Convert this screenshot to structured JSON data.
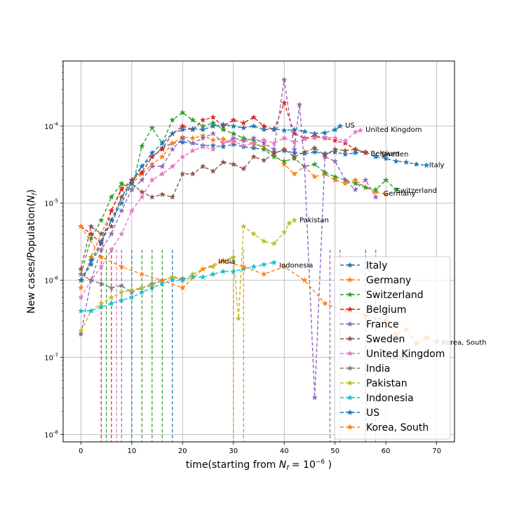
{
  "chart_data": {
    "type": "line",
    "title": "",
    "xlabel": "time(starting from N_f = 10^-6 )",
    "ylabel": "New cases/Population(N_f)",
    "xlim": [
      -3.5,
      73.5
    ],
    "ylim": [
      8e-09,
      0.0007
    ],
    "yscale": "log",
    "xticks": [
      "0",
      "10",
      "20",
      "30",
      "40",
      "50",
      "60",
      "70"
    ],
    "yticks": [
      "10^-8",
      "10^-7",
      "10^-6",
      "10^-5",
      "10^-4"
    ],
    "grid": true,
    "legend_position": "lower-right",
    "series": [
      {
        "name": "Italy",
        "color": "#1f77b4",
        "marker": "star",
        "x": [
          0,
          2,
          4,
          6,
          8,
          10,
          12,
          14,
          16,
          18,
          20,
          22,
          24,
          26,
          28,
          30,
          32,
          34,
          36,
          38,
          40,
          42,
          44,
          46,
          48,
          50,
          52,
          54,
          56,
          58,
          60,
          62,
          64,
          66,
          68
        ],
        "y": [
          1e-06,
          1.6e-06,
          3e-06,
          6e-06,
          1.2e-05,
          2e-05,
          3e-05,
          4e-05,
          5.2e-05,
          6e-05,
          6.2e-05,
          6e-05,
          5.6e-05,
          5.6e-05,
          5.4e-05,
          5.8e-05,
          5.4e-05,
          5.2e-05,
          5e-05,
          4.6e-05,
          4.8e-05,
          4.5e-05,
          4.4e-05,
          4.6e-05,
          4.4e-05,
          4.6e-05,
          4.3e-05,
          4.5e-05,
          4.6e-05,
          4e-05,
          3.8e-05,
          3.5e-05,
          3.4e-05,
          3.2e-05,
          3.1e-05
        ]
      },
      {
        "name": "Germany",
        "color": "#ff7f0e",
        "marker": "star",
        "x": [
          0,
          2,
          4,
          6,
          8,
          10,
          12,
          14,
          16,
          18,
          20,
          22,
          24,
          26,
          28,
          30,
          32,
          34,
          36,
          38,
          40,
          42,
          44,
          46,
          48,
          50,
          52,
          54,
          56,
          58,
          60
        ],
        "y": [
          8e-07,
          2e-06,
          4e-06,
          8e-06,
          1.6e-05,
          1.8e-05,
          2.4e-05,
          3.2e-05,
          4e-05,
          6e-05,
          7.2e-05,
          7e-05,
          7.5e-05,
          6.6e-05,
          6.8e-05,
          6.2e-05,
          6.6e-05,
          5.8e-05,
          5.4e-05,
          4.4e-05,
          3.2e-05,
          2.4e-05,
          3e-05,
          2.2e-05,
          2.4e-05,
          2e-05,
          1.8e-05,
          2e-05,
          1.6e-05,
          1.4e-05,
          1.3e-05
        ]
      },
      {
        "name": "Switzerland",
        "color": "#2ca02c",
        "marker": "star",
        "x": [
          0,
          2,
          4,
          6,
          8,
          10,
          12,
          14,
          16,
          18,
          20,
          22,
          24,
          26,
          28,
          30,
          32,
          34,
          36,
          38,
          40,
          42,
          44,
          46,
          48,
          50,
          52,
          54,
          56,
          58,
          60,
          62
        ],
        "y": [
          1.2e-06,
          3.5e-06,
          6e-06,
          1.2e-05,
          1.8e-05,
          1.5e-05,
          5.5e-05,
          9.5e-05,
          6e-05,
          0.00012,
          0.00015,
          0.00012,
          0.0001,
          0.00011,
          9e-05,
          8e-05,
          7e-05,
          6.5e-05,
          5e-05,
          4e-05,
          3.5e-05,
          3.8e-05,
          3e-05,
          3.2e-05,
          2.5e-05,
          2.2e-05,
          2e-05,
          1.8e-05,
          1.6e-05,
          1.5e-05,
          2e-05,
          1.5e-05
        ]
      },
      {
        "name": "Belgium",
        "color": "#d62728",
        "marker": "star",
        "x": [
          0,
          2,
          4,
          6,
          8,
          10,
          12,
          14,
          16,
          18,
          20,
          22,
          24,
          26,
          28,
          30,
          32,
          34,
          36,
          38,
          40,
          42,
          44,
          46,
          48,
          50,
          52,
          54,
          56
        ],
        "y": [
          5e-06,
          4e-06,
          3e-06,
          8e-06,
          1.5e-05,
          2e-05,
          2.5e-05,
          4e-05,
          5e-05,
          8e-05,
          0.0001,
          9e-05,
          0.00012,
          0.00013,
          0.0001,
          0.00012,
          0.00011,
          0.00013,
          0.0001,
          9e-05,
          0.0002,
          8e-05,
          7e-05,
          7.5e-05,
          7e-05,
          6.5e-05,
          6e-05,
          5e-05,
          4.5e-05
        ]
      },
      {
        "name": "France",
        "color": "#9467bd",
        "marker": "star",
        "x": [
          0,
          2,
          4,
          6,
          8,
          10,
          12,
          14,
          16,
          18,
          20,
          22,
          24,
          26,
          28,
          30,
          32,
          34,
          36,
          38,
          40,
          42,
          43,
          44,
          46,
          48,
          50,
          52,
          54,
          56,
          58
        ],
        "y": [
          2e-07,
          1e-06,
          2.5e-06,
          4e-06,
          8e-06,
          1.5e-05,
          2e-05,
          3e-05,
          3e-05,
          5e-05,
          7e-05,
          6e-05,
          7e-05,
          8e-05,
          6e-05,
          7e-05,
          6.5e-05,
          7e-05,
          6e-05,
          5e-05,
          0.0004,
          5e-05,
          0.00019,
          3e-05,
          3e-08,
          4e-05,
          3.5e-05,
          2e-05,
          1.5e-05,
          2e-05,
          1.2e-05
        ]
      },
      {
        "name": "Sweden",
        "color": "#8c564b",
        "marker": "star",
        "x": [
          0,
          2,
          4,
          6,
          8,
          10,
          12,
          14,
          16,
          18,
          20,
          22,
          24,
          26,
          28,
          30,
          32,
          34,
          36,
          38,
          40,
          42,
          44,
          46,
          48,
          50,
          52,
          54,
          56
        ],
        "y": [
          1.4e-06,
          5e-06,
          4e-06,
          5e-06,
          1.2e-05,
          1.8e-05,
          1.4e-05,
          1.2e-05,
          1.3e-05,
          1.2e-05,
          2.4e-05,
          2.4e-05,
          3e-05,
          2.6e-05,
          3.4e-05,
          3.2e-05,
          2.8e-05,
          4e-05,
          3.6e-05,
          4.4e-05,
          5e-05,
          4e-05,
          4.6e-05,
          5.2e-05,
          4.2e-05,
          5e-05,
          4.8e-05,
          5e-05,
          4.6e-05
        ]
      },
      {
        "name": "United Kingdom",
        "color": "#e377c2",
        "marker": "star",
        "x": [
          0,
          2,
          4,
          6,
          8,
          10,
          12,
          14,
          16,
          18,
          20,
          22,
          24,
          26,
          28,
          30,
          32,
          34,
          36,
          38,
          40,
          42,
          44,
          46,
          48,
          50,
          52,
          54,
          55
        ],
        "y": [
          6e-07,
          1e-06,
          1.5e-06,
          2.5e-06,
          4e-06,
          8e-06,
          1.2e-05,
          2e-05,
          2.4e-05,
          3e-05,
          4e-05,
          4.8e-05,
          5.4e-05,
          5e-05,
          6e-05,
          6.4e-05,
          5.6e-05,
          6e-05,
          6.6e-05,
          6e-05,
          7e-05,
          6.2e-05,
          6.8e-05,
          7e-05,
          7.2e-05,
          7e-05,
          6.4e-05,
          8.4e-05,
          8.8e-05
        ]
      },
      {
        "name": "India",
        "color": "#7f7f7f",
        "marker": "star",
        "x": [
          0,
          2,
          4,
          6,
          8,
          10,
          12,
          14,
          16,
          18,
          20
        ],
        "y": [
          1.2e-06,
          1e-06,
          9e-07,
          8e-07,
          8.5e-07,
          7e-07,
          8e-07,
          9e-07,
          1e-06,
          1.1e-06,
          1.05e-06
        ]
      },
      {
        "name": "Pakistan",
        "color": "#bcbd22",
        "marker": "star",
        "x": [
          0,
          2,
          4,
          6,
          8,
          10,
          12,
          14,
          16,
          18,
          20,
          22,
          24,
          26,
          28,
          30,
          31,
          32,
          34,
          36,
          38,
          40,
          41,
          42
        ],
        "y": [
          2.2e-07,
          4e-07,
          5e-07,
          6e-07,
          7e-07,
          7.5e-07,
          8e-07,
          8.5e-07,
          1e-06,
          1.1e-06,
          1e-06,
          1.2e-06,
          1.4e-06,
          1.5e-06,
          1.8e-06,
          2e-06,
          3.2e-07,
          5e-06,
          4e-06,
          3.2e-06,
          3e-06,
          4.2e-06,
          5.5e-06,
          6e-06
        ]
      },
      {
        "name": "Indonesia",
        "color": "#17becf",
        "marker": "star",
        "x": [
          0,
          2,
          4,
          6,
          8,
          10,
          12,
          14,
          16,
          18,
          20,
          22,
          24,
          26,
          28,
          30,
          32,
          34,
          36,
          38
        ],
        "y": [
          4e-07,
          4e-07,
          4.5e-07,
          5e-07,
          5.5e-07,
          6e-07,
          7e-07,
          8e-07,
          9e-07,
          1e-06,
          1e-06,
          1.1e-06,
          1.1e-06,
          1.2e-06,
          1.3e-06,
          1.3e-06,
          1.4e-06,
          1.5e-06,
          1.6e-06,
          1.7e-06
        ]
      },
      {
        "name": "US",
        "color": "#1f77b4",
        "marker": "star",
        "x": [
          0,
          2,
          4,
          6,
          8,
          10,
          12,
          14,
          16,
          18,
          20,
          22,
          24,
          26,
          28,
          30,
          32,
          34,
          36,
          38,
          40,
          42,
          44,
          46,
          48,
          50,
          51
        ],
        "y": [
          1e-06,
          1.8e-06,
          3.2e-06,
          6e-06,
          1e-05,
          1.8e-05,
          3e-05,
          4.5e-05,
          6e-05,
          8e-05,
          9e-05,
          9.2e-05,
          9e-05,
          0.0001,
          0.000105,
          0.0001,
          9.5e-05,
          0.0001,
          9e-05,
          9.2e-05,
          8.8e-05,
          9e-05,
          8.5e-05,
          8e-05,
          8.2e-05,
          9e-05,
          0.0001
        ]
      },
      {
        "name": "Korea, South",
        "color": "#ff7f0e",
        "marker": "star",
        "x": [
          0,
          4,
          8,
          12,
          16,
          20,
          24,
          28,
          32,
          36,
          40,
          44,
          48,
          52,
          56,
          60,
          62,
          64,
          66,
          68,
          70
        ],
        "y": [
          5e-06,
          2e-06,
          1.5e-06,
          1.2e-06,
          1e-06,
          8e-07,
          1.4e-06,
          1.8e-06,
          1.5e-06,
          1.2e-06,
          1.5e-06,
          1e-06,
          5e-07,
          4e-07,
          3.5e-07,
          3e-07,
          2e-07,
          2.3e-07,
          1.5e-07,
          1.8e-07,
          1.6e-07
        ]
      }
    ],
    "dropouts": [
      {
        "x": 4,
        "color": "#d62728"
      },
      {
        "x": 5,
        "color": "#2ca02c"
      },
      {
        "x": 6,
        "color": "#d62728"
      },
      {
        "x": 7,
        "color": "#e377c2"
      },
      {
        "x": 8,
        "color": "#9467bd"
      },
      {
        "x": 10,
        "color": "#1f77b4"
      },
      {
        "x": 12,
        "color": "#2ca02c"
      },
      {
        "x": 14,
        "color": "#2ca02c"
      },
      {
        "x": 16,
        "color": "#2ca02c"
      },
      {
        "x": 18,
        "color": "#1f77b4"
      },
      {
        "x": 30,
        "color": "#ff7f0e"
      },
      {
        "x": 32,
        "color": "#ff7f0e"
      },
      {
        "x": 49,
        "color": "#9467bd"
      },
      {
        "x": 51,
        "color": "#9467bd"
      },
      {
        "x": 56,
        "color": "#1f77b4"
      },
      {
        "x": 58,
        "color": "#9467bd"
      }
    ],
    "annotations": [
      {
        "text": "US",
        "x": 52.0,
        "y": 0.000102
      },
      {
        "text": "United Kingdom",
        "x": 56.0,
        "y": 9e-05
      },
      {
        "text": "Belgium",
        "x": 57.0,
        "y": 4.4e-05
      },
      {
        "text": "Sweden",
        "x": 59.0,
        "y": 4.3e-05
      },
      {
        "text": "Italy",
        "x": 68.5,
        "y": 3.1e-05
      },
      {
        "text": "Switzerland",
        "x": 62.0,
        "y": 1.45e-05
      },
      {
        "text": "Germany",
        "x": 59.5,
        "y": 1.33e-05
      },
      {
        "text": "Pakistan",
        "x": 43.0,
        "y": 6e-06
      },
      {
        "text": "India",
        "x": 27.0,
        "y": 1.75e-06
      },
      {
        "text": "Indonesia",
        "x": 39.0,
        "y": 1.55e-06
      },
      {
        "text": "Korea, South",
        "x": 71.0,
        "y": 1.55e-07
      },
      {
        "text": "France",
        "x": 60.0,
        "y": 1e-07
      }
    ]
  }
}
